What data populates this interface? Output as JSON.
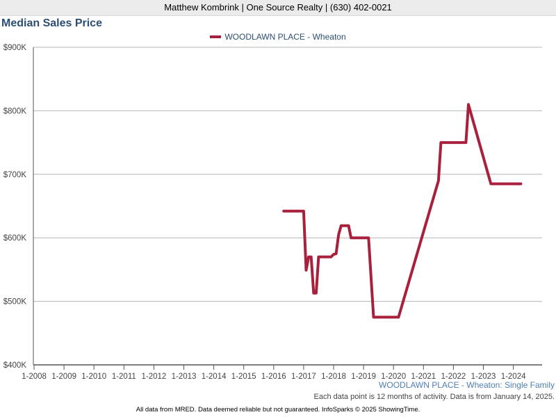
{
  "header": {
    "agent_text": "Matthew Kombrink | One Source Realty | (630) 402-0021"
  },
  "chart_data": {
    "type": "line",
    "title": "Median Sales Price",
    "xlabel": "",
    "ylabel": "",
    "x_ticks": [
      "1-2008",
      "1-2009",
      "1-2010",
      "1-2011",
      "1-2012",
      "1-2013",
      "1-2014",
      "1-2015",
      "1-2016",
      "1-2017",
      "1-2018",
      "1-2019",
      "1-2020",
      "1-2021",
      "1-2022",
      "1-2023",
      "1-2024"
    ],
    "y_ticks": [
      "$400K",
      "$500K",
      "$600K",
      "$700K",
      "$800K",
      "$900K"
    ],
    "xlim": [
      "2007-12",
      "2024-12"
    ],
    "ylim": [
      400000,
      900000
    ],
    "grid": true,
    "legend_position": "top-center",
    "series": [
      {
        "name": "WOODLAWN PLACE - Wheaton",
        "color": "#a8203c",
        "points": [
          {
            "x": "2016-05",
            "y": 642000
          },
          {
            "x": "2017-01",
            "y": 642000
          },
          {
            "x": "2017-02",
            "y": 549000
          },
          {
            "x": "2017-03",
            "y": 570000
          },
          {
            "x": "2017-04",
            "y": 570000
          },
          {
            "x": "2017-05",
            "y": 513000
          },
          {
            "x": "2017-06",
            "y": 513000
          },
          {
            "x": "2017-07",
            "y": 570000
          },
          {
            "x": "2017-12",
            "y": 570000
          },
          {
            "x": "2018-01",
            "y": 574000
          },
          {
            "x": "2018-02",
            "y": 575000
          },
          {
            "x": "2018-03",
            "y": 605000
          },
          {
            "x": "2018-04",
            "y": 619000
          },
          {
            "x": "2018-07",
            "y": 619000
          },
          {
            "x": "2018-08",
            "y": 600000
          },
          {
            "x": "2019-03",
            "y": 600000
          },
          {
            "x": "2019-05",
            "y": 475000
          },
          {
            "x": "2020-03",
            "y": 475000
          },
          {
            "x": "2021-07",
            "y": 690000
          },
          {
            "x": "2021-08",
            "y": 750000
          },
          {
            "x": "2022-06",
            "y": 750000
          },
          {
            "x": "2022-07",
            "y": 810000
          },
          {
            "x": "2023-04",
            "y": 685000
          },
          {
            "x": "2024-04",
            "y": 685000
          }
        ]
      }
    ]
  },
  "caption": {
    "series_label": "WOODLAWN PLACE - Wheaton: Single Family",
    "note": "Each data point is 12 months of activity. Data is from January 14, 2025."
  },
  "footer": {
    "text": "All data from MRED. Data deemed reliable but not guaranteed. InfoSparks © 2025 ShowingTime."
  }
}
